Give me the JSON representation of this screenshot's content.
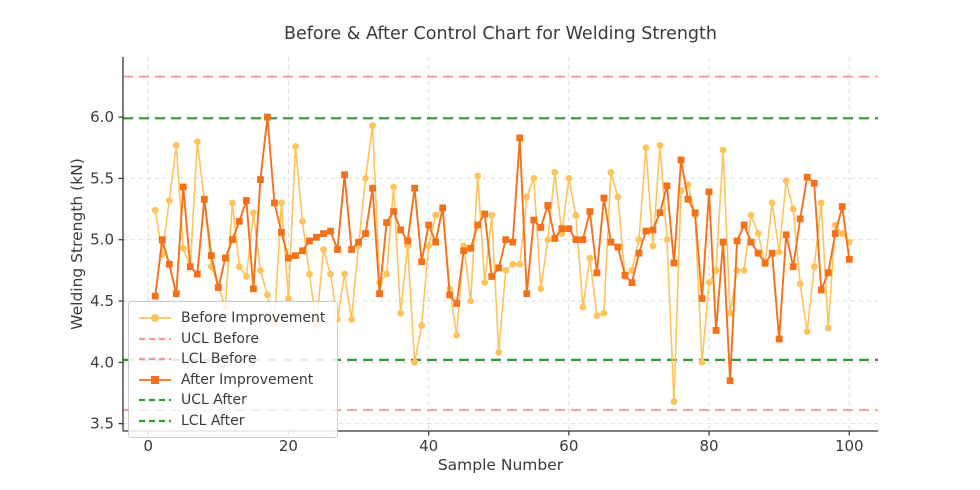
{
  "figure": {
    "title": "Before & After Control Chart for Welding Strength",
    "xlabel": "Sample Number",
    "ylabel": "Welding Strength (kN)"
  },
  "colors": {
    "before_series": "#FFC35C",
    "after_series": "#F4711C",
    "limit_before": "#FB9398",
    "limit_after": "#2E9B2E",
    "grid": "#DBDBDB",
    "text": "#3A3A3A",
    "spine": "#333333",
    "legend_border": "#CCCCCC",
    "background": "#FFFFFF"
  },
  "legend": {
    "items": [
      {
        "label": "Before Improvement",
        "swatch": "line-circle",
        "color_key": "before_series"
      },
      {
        "label": "UCL Before",
        "swatch": "dashed",
        "color_key": "limit_before"
      },
      {
        "label": "LCL Before",
        "swatch": "dashed",
        "color_key": "limit_before"
      },
      {
        "label": "After Improvement",
        "swatch": "line-square",
        "color_key": "after_series"
      },
      {
        "label": "UCL After",
        "swatch": "dashed",
        "color_key": "limit_after"
      },
      {
        "label": "LCL After",
        "swatch": "dashed",
        "color_key": "limit_after"
      }
    ]
  },
  "chart_data": {
    "type": "line",
    "title": "Before & After Control Chart for Welding Strength",
    "xlabel": "Sample Number",
    "ylabel": "Welding Strength (kN)",
    "x_description": "Sample Number 1-100 (one point per sample)",
    "x_ticks": [
      0,
      20,
      40,
      60,
      80,
      100
    ],
    "y_ticks": [
      3.5,
      4.0,
      4.5,
      5.0,
      5.5,
      6.0
    ],
    "y_tick_labels": [
      "3.5",
      "4.0",
      "4.5",
      "5.0",
      "5.5",
      "6.0"
    ],
    "x_tick_labels": [
      "0",
      "20",
      "40",
      "60",
      "80",
      "100"
    ],
    "xlim": [
      -3.6,
      104.1
    ],
    "ylim": [
      3.44,
      6.49
    ],
    "grid": true,
    "legend_position": "lower-left",
    "control_limits": {
      "ucl_before": 6.33,
      "lcl_before": 3.61,
      "ucl_after": 5.99,
      "lcl_after": 4.02
    },
    "series": [
      {
        "name": "Before Improvement",
        "marker": "circle",
        "color_key": "before_series",
        "values": [
          5.24,
          4.88,
          5.32,
          5.77,
          4.93,
          4.78,
          5.8,
          5.32,
          4.78,
          4.62,
          4.45,
          5.3,
          4.78,
          4.7,
          5.22,
          4.75,
          4.55,
          4.32,
          5.3,
          4.52,
          5.76,
          5.15,
          4.72,
          4.3,
          4.92,
          4.72,
          4.35,
          4.72,
          4.35,
          4.95,
          5.5,
          5.93,
          4.65,
          4.72,
          5.43,
          4.4,
          4.95,
          4.0,
          4.3,
          4.95,
          5.2,
          5.25,
          4.6,
          4.22,
          4.95,
          4.5,
          5.52,
          4.65,
          5.2,
          4.08,
          4.75,
          4.8,
          4.8,
          5.35,
          5.5,
          4.6,
          5.0,
          5.55,
          5.05,
          5.5,
          5.2,
          4.45,
          4.85,
          4.38,
          4.4,
          5.55,
          5.35,
          4.7,
          4.75,
          5.0,
          5.75,
          4.95,
          5.77,
          5.0,
          3.68,
          5.4,
          5.45,
          5.2,
          4.0,
          4.65,
          4.75,
          5.73,
          4.4,
          4.75,
          4.75,
          5.2,
          5.05,
          4.8,
          5.3,
          4.9,
          5.48,
          5.25,
          4.64,
          4.25,
          4.78,
          5.3,
          4.28,
          5.12,
          5.05,
          4.98
        ]
      },
      {
        "name": "After Improvement",
        "marker": "square",
        "color_key": "after_series",
        "values": [
          4.54,
          5.0,
          4.8,
          4.56,
          5.43,
          4.78,
          4.72,
          5.33,
          4.87,
          4.61,
          4.85,
          5.0,
          5.15,
          5.32,
          4.6,
          5.49,
          6.0,
          5.3,
          5.06,
          4.85,
          4.87,
          4.91,
          4.99,
          5.02,
          5.05,
          5.07,
          4.92,
          5.53,
          4.92,
          4.98,
          5.05,
          5.42,
          4.56,
          5.14,
          5.23,
          5.08,
          4.99,
          5.42,
          4.82,
          5.12,
          4.98,
          5.26,
          4.55,
          4.48,
          4.91,
          4.93,
          5.12,
          5.21,
          4.7,
          4.77,
          5.0,
          4.98,
          5.83,
          4.56,
          5.16,
          5.1,
          5.28,
          5.01,
          5.09,
          5.09,
          5.0,
          5.0,
          5.23,
          4.73,
          5.34,
          4.98,
          4.94,
          4.71,
          4.65,
          4.89,
          5.07,
          5.08,
          5.22,
          5.44,
          4.81,
          5.65,
          5.33,
          5.22,
          4.52,
          5.39,
          4.26,
          4.98,
          3.85,
          4.99,
          5.12,
          4.98,
          4.89,
          4.81,
          4.89,
          4.19,
          5.04,
          4.78,
          5.17,
          5.51,
          5.46,
          4.59,
          4.73,
          5.05,
          5.27,
          4.84
        ]
      }
    ]
  }
}
